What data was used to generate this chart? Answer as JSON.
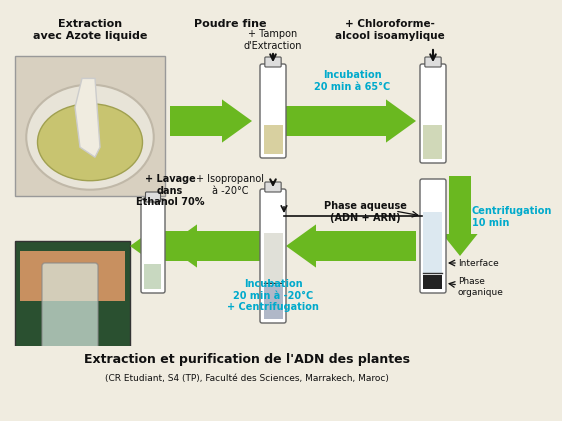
{
  "title": "Extraction et purification de l'ADN des plantes",
  "subtitle": "(CR Etudiant, S4 (TP), Faculté des Sciences, Marrakech, Maroc)",
  "bg_color": "#f0ece0",
  "arrow_color": "#6ab820",
  "cyan_color": "#00aacc",
  "black_color": "#111111",
  "labels": {
    "top_left": "Extraction\navec Azote liquide",
    "poudre": "Poudre fine",
    "tampon": "+ Tampon\nd'Extraction",
    "chloroforme": "+ Chloroforme-\nalcool isoamylique",
    "incubation1": "Incubation\n20 min à 65°C",
    "centrifugation": "Centrifugation\n10 min",
    "isopropanol": "+ Isopropanol\nà -20°C",
    "phase_aqueuse": "Phase aqueuse\n(ADN + ARN)",
    "interface": "Interface",
    "phase_organique": "Phase\norganique",
    "lavage": "+ Lavage\ndans\nEthanol 70%",
    "incubation2": "Incubation\n20 min à -20°C\n+ Centrifugation"
  }
}
